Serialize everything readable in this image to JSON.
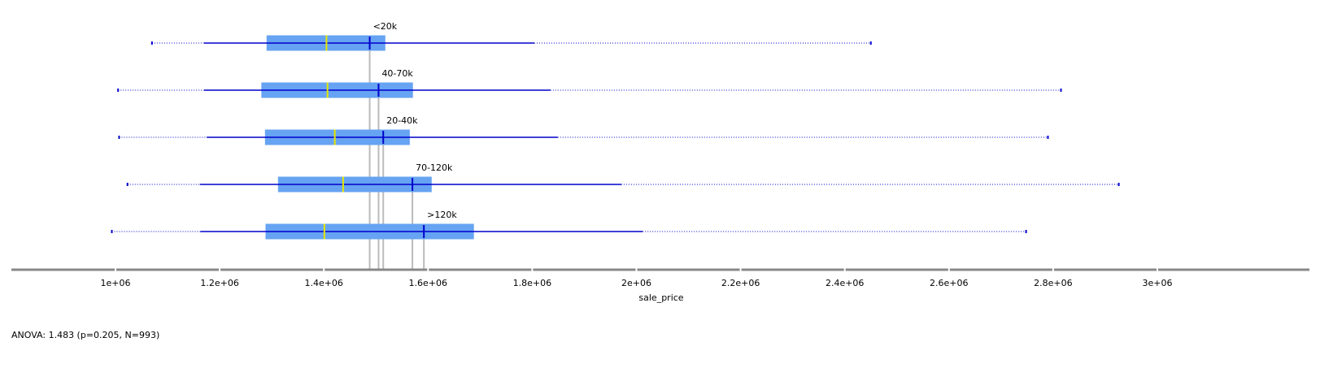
{
  "chart_data": {
    "type": "boxplot",
    "title": "",
    "xlabel": "sale_price",
    "ylabel": "",
    "xlim": [
      900000,
      3100000
    ],
    "ticks": [
      {
        "value": 1000000,
        "label": "1e+06"
      },
      {
        "value": 1200000,
        "label": "1.2e+06"
      },
      {
        "value": 1400000,
        "label": "1.4e+06"
      },
      {
        "value": 1600000,
        "label": "1.6e+06"
      },
      {
        "value": 1800000,
        "label": "1.8e+06"
      },
      {
        "value": 2000000,
        "label": "2e+06"
      },
      {
        "value": 2200000,
        "label": "2.2e+06"
      },
      {
        "value": 2400000,
        "label": "2.4e+06"
      },
      {
        "value": 2600000,
        "label": "2.6e+06"
      },
      {
        "value": 2800000,
        "label": "2.8e+06"
      },
      {
        "value": 3000000,
        "label": "3e+06"
      }
    ],
    "groups": [
      {
        "label": "<20k",
        "min": 1070000,
        "whisker_low": 1170000,
        "q1": 1290000,
        "median": 1405000,
        "mean": 1488000,
        "q3": 1518000,
        "whisker_high": 1804000,
        "max": 2450000
      },
      {
        "label": "40-70k",
        "min": 1005000,
        "whisker_low": 1170000,
        "q1": 1280000,
        "median": 1407000,
        "mean": 1505000,
        "q3": 1571000,
        "whisker_high": 1835000,
        "max": 2815000
      },
      {
        "label": "20-40k",
        "min": 1007000,
        "whisker_low": 1175000,
        "q1": 1287000,
        "median": 1421000,
        "mean": 1514000,
        "q3": 1565000,
        "whisker_high": 1849000,
        "max": 2790000
      },
      {
        "label": "70-120k",
        "min": 1023000,
        "whisker_low": 1162000,
        "q1": 1312000,
        "median": 1437000,
        "mean": 1570000,
        "q3": 1607000,
        "whisker_high": 1971000,
        "max": 2926000
      },
      {
        "label": ">120k",
        "min": 993000,
        "whisker_low": 1163000,
        "q1": 1288000,
        "median": 1401000,
        "mean": 1592000,
        "q3": 1688000,
        "whisker_high": 2012000,
        "max": 2748000
      }
    ],
    "colors": {
      "box": "#66a3f2",
      "whisker": "#0000cc",
      "median": "#e6e600",
      "mean": "#0000cc",
      "mean_guide": "#bbbbbb",
      "axis": "#888888"
    }
  },
  "stats": {
    "anova": "ANOVA: 1.483 (p=0.205, N=993)"
  }
}
